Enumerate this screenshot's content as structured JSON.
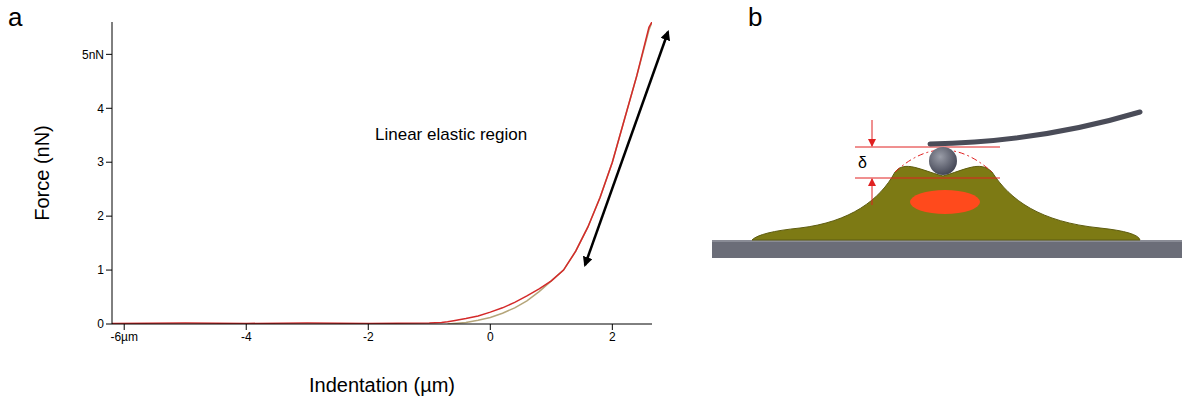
{
  "panel_labels": [
    "a",
    "b"
  ],
  "chart_data": {
    "type": "line",
    "x_label": "Indentation (µm)",
    "y_label": "Force  (nN)",
    "x": [
      -6.2,
      -5,
      -4,
      -3,
      -2,
      -1,
      -0.8,
      -0.7,
      -0.6,
      -0.4,
      -0.2,
      0,
      0.2,
      0.4,
      0.6,
      0.8,
      1,
      1.2,
      1.4,
      1.6,
      1.8,
      2,
      2.2,
      2.4,
      2.6,
      2.65
    ],
    "series": [
      {
        "color": "#b5a57a",
        "values": [
          null,
          null,
          null,
          null,
          null,
          null,
          null,
          0,
          0.01,
          0.03,
          0.07,
          0.12,
          0.2,
          0.3,
          0.43,
          0.6,
          0.8,
          1.0,
          1.35,
          1.8,
          2.35,
          3.0,
          3.8,
          4.6,
          5.45,
          5.6
        ]
      },
      {
        "color": "#d42a2a",
        "values": [
          0.01,
          0.02,
          0.01,
          0.02,
          0.01,
          0.02,
          0.03,
          0.04,
          0.06,
          0.1,
          0.15,
          0.22,
          0.3,
          0.4,
          0.52,
          0.65,
          0.8,
          1.0,
          1.35,
          1.8,
          2.35,
          3.0,
          3.8,
          4.6,
          5.5,
          5.6
        ]
      }
    ],
    "xlim": [
      -6.2,
      2.65
    ],
    "ylim": [
      0,
      5.6
    ],
    "xticks": [
      {
        "value": -6,
        "label": "-6µm"
      },
      -4,
      -2,
      0,
      2
    ],
    "yticks": [
      0,
      1,
      2,
      3,
      4,
      {
        "value": 5,
        "label": "5nN"
      }
    ],
    "grid": false,
    "annotations": [
      {
        "text": "Linear elastic region"
      }
    ]
  },
  "diagram": {
    "labels": [
      "δ"
    ]
  }
}
